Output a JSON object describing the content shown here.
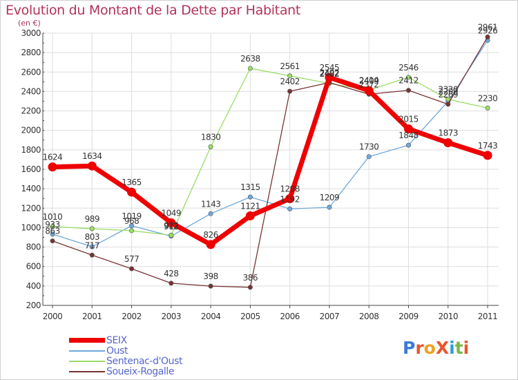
{
  "title": "Evolution du Montant de la Dette par Habitant",
  "subtitle": "(en €)",
  "logo_text": "ProXiti",
  "colors": {
    "title": "#b3325a",
    "axis": "#444444",
    "grid": "#dddddd",
    "axis_tick": "#cc0000",
    "logo": [
      "#3a7bd5",
      "#e8562a",
      "#f0a020",
      "#e8562a",
      "#2a9fd6",
      "#7ab648",
      "#e8562a"
    ]
  },
  "chart_data": {
    "type": "line",
    "title": "Evolution du Montant de la Dette par Habitant",
    "subtitle": "(en €)",
    "categories": [
      "2000",
      "2001",
      "2002",
      "2003",
      "2004",
      "2005",
      "2006",
      "2007",
      "2008",
      "2009",
      "2010",
      "2011"
    ],
    "ylim": [
      200,
      3000
    ],
    "yticks": [
      200,
      400,
      600,
      800,
      1000,
      1200,
      1400,
      1600,
      1800,
      2000,
      2200,
      2400,
      2600,
      2800,
      3000
    ],
    "grid": true,
    "legend_position": "bottom-left",
    "series": [
      {
        "name": "SEIX",
        "color": "#ee0000",
        "width": "thick",
        "values": [
          1624,
          1634,
          1365,
          1049,
          826,
          1121,
          1298,
          2545,
          2409,
          2015,
          1873,
          1743
        ],
        "labels": [
          "1624",
          "1634",
          "1365",
          "1049",
          "826",
          "1121",
          "1298",
          "2545",
          "2409",
          "2015",
          "1873",
          "1743"
        ]
      },
      {
        "name": "Oust",
        "color": "#6fa8dc",
        "width": "thin",
        "values": [
          933,
          803,
          1019,
          912,
          1143,
          1315,
          1192,
          1209,
          1730,
          1848,
          2299,
          2926
        ],
        "labels": [
          "933",
          "803",
          "1019",
          "912",
          "1143",
          "1315",
          "1192",
          "1209",
          "1730",
          "1848",
          "2299",
          "2926"
        ]
      },
      {
        "name": "Sentenac-d'Oust",
        "color": "#99dd66",
        "width": "thin",
        "values": [
          1010,
          989,
          968,
          922,
          1830,
          2638,
          2561,
          2482,
          2414,
          2546,
          2320,
          2230
        ],
        "labels": [
          "1010",
          "989",
          "968",
          "922",
          "1830",
          "2638",
          "2561",
          "2482",
          "2414",
          "2546",
          "2320",
          "2230"
        ]
      },
      {
        "name": "Soueix-Rogalle",
        "color": "#773333",
        "width": "thin",
        "values": [
          863,
          717,
          577,
          428,
          398,
          386,
          2402,
          2492,
          2372,
          2412,
          2269,
          2961
        ],
        "labels": [
          "863",
          "717",
          "577",
          "428",
          "398",
          "386",
          "2402",
          "2492",
          "2372",
          "2412",
          "2269",
          "2961"
        ]
      }
    ]
  }
}
